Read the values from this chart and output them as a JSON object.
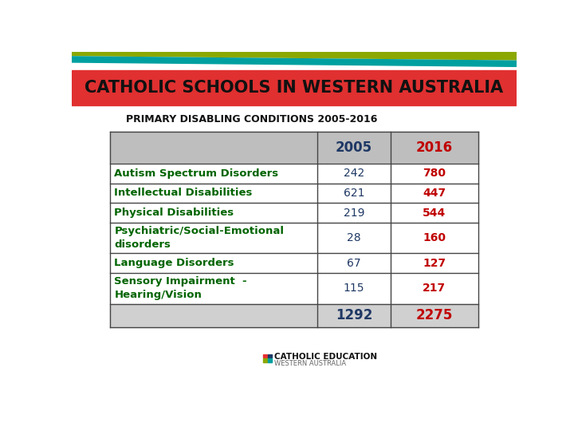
{
  "title": "CATHOLIC SCHOOLS IN WESTERN AUSTRALIA",
  "subtitle": "PRIMARY DISABLING CONDITIONS 2005-2016",
  "header_bg": "#E03030",
  "stripe1_color": "#8BA800",
  "stripe2_color": "#00A0A0",
  "table_rows": [
    {
      "label": "Autism Spectrum Disorders",
      "val2005": "242",
      "val2016": "780"
    },
    {
      "label": "Intellectual Disabilities",
      "val2005": "621",
      "val2016": "447"
    },
    {
      "label": "Physical Disabilities",
      "val2005": "219",
      "val2016": "544"
    },
    {
      "label": "Psychiatric/Social-Emotional\ndisorders",
      "val2005": "28",
      "val2016": "160"
    },
    {
      "label": "Language Disorders",
      "val2005": "67",
      "val2016": "127"
    },
    {
      "label": "Sensory Impairment  -\nHearing/Vision",
      "val2005": "115",
      "val2016": "217"
    }
  ],
  "total_2005": "1292",
  "total_2016": "2275",
  "col2005_color": "#1F3864",
  "col2016_color": "#C00000",
  "label_color": "#006400",
  "header_col_2005_color": "#1F3864",
  "header_col_2016_color": "#C00000",
  "total_2005_color": "#1F3864",
  "total_2016_color": "#C00000",
  "cell_bg_normal": "#FFFFFF",
  "cell_bg_header": "#BEBEBE",
  "cell_bg_total": "#D0D0D0",
  "border_color": "#444444",
  "logo_text_main": "CATHOLIC EDUCATION",
  "logo_text_sub": "WESTERN AUSTRALIA",
  "logo_colors": [
    "#E83030",
    "#1F3864",
    "#8BA800",
    "#00A0A0"
  ]
}
